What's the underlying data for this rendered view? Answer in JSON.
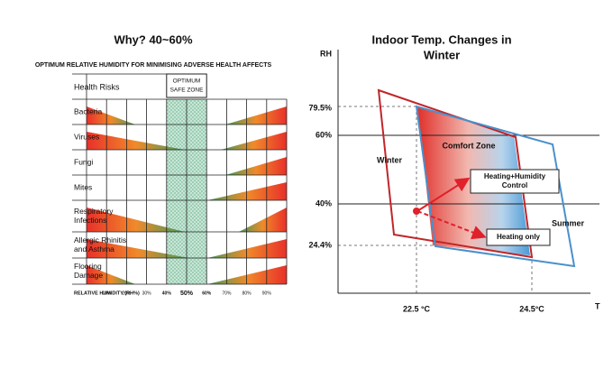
{
  "left": {
    "title": "Why? 40~60%",
    "subtitle": "OPTIMUM RELATIVE HUMIDITY FOR MINIMISING ADVERSE HEALTH AFFECTS",
    "header": {
      "risk_label": "Health Risks",
      "zone_label": [
        "OPTIMUM",
        "SAFE ZONE"
      ]
    },
    "rows": [
      [
        "Bacteria"
      ],
      [
        "Viruses"
      ],
      [
        "Fungi"
      ],
      [
        "Mites"
      ],
      [
        "Respiratory",
        "Infections"
      ],
      [
        "Allergic Rhinitis",
        "and Asthma"
      ],
      [
        "Flooring",
        "Damage"
      ]
    ],
    "axis_label": "RELATIVE HUMIDITY (RH%)",
    "ticks": [
      "10%",
      "20%",
      "30%",
      "40%",
      "50%",
      "60%",
      "70%",
      "80%",
      "90%"
    ]
  },
  "right": {
    "title": [
      "Indoor Temp. Changes in",
      "Winter"
    ],
    "y_axis_label": "RH",
    "x_axis_label": "T",
    "y_labels": [
      "79.5%",
      "60%",
      "40%",
      "24.4%"
    ],
    "x_labels": [
      "22.5 °C",
      "24.5°C"
    ],
    "comfort_zone": "Comfort Zone",
    "winter": "Winter",
    "summer": "Summer",
    "heating_humidity": [
      "Heating+Humidity",
      "Control"
    ],
    "heating_only": "Heating only"
  }
}
